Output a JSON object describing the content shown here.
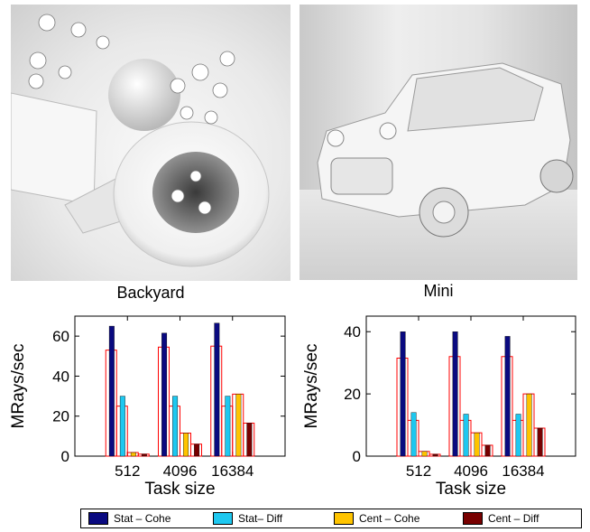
{
  "panels": [
    {
      "caption": "Backyard"
    },
    {
      "caption": "Mini"
    }
  ],
  "colors": {
    "stat_cohe": "#0a0a80",
    "stat_diff": "#1ec8f0",
    "cent_cohe": "#ffc400",
    "cent_diff": "#780000",
    "outline_bar": "#ff0000"
  },
  "legend": [
    {
      "label": "Stat – Cohe",
      "color": "#0a0a80"
    },
    {
      "label": "Stat– Diff",
      "color": "#1ec8f0"
    },
    {
      "label": "Cent – Cohe",
      "color": "#ffc400"
    },
    {
      "label": "Cent – Diff",
      "color": "#780000"
    }
  ],
  "chart_data": [
    {
      "type": "bar",
      "title": "Backyard",
      "xlabel": "Task size",
      "ylabel": "MRays/sec",
      "categories": [
        "512",
        "4096",
        "16384"
      ],
      "ylim": [
        0,
        70
      ],
      "yticks": [
        0,
        20,
        40,
        60
      ],
      "series": [
        {
          "name": "Stat – Cohe",
          "values": [
            65,
            61.5,
            66.5
          ]
        },
        {
          "name": "Stat– Diff",
          "values": [
            30,
            30,
            30
          ]
        },
        {
          "name": "Cent – Cohe",
          "values": [
            1.8,
            11.5,
            31
          ]
        },
        {
          "name": "Cent – Diff",
          "values": [
            1,
            6,
            16.5
          ]
        }
      ],
      "outline_values": [
        [
          53,
          54.5,
          55
        ],
        [
          25,
          25,
          25
        ],
        [
          1.8,
          11.5,
          31
        ],
        [
          1,
          6,
          16.5
        ]
      ]
    },
    {
      "type": "bar",
      "title": "Mini",
      "xlabel": "Task size",
      "ylabel": "MRays/sec",
      "categories": [
        "512",
        "4096",
        "16384"
      ],
      "ylim": [
        0,
        45
      ],
      "yticks": [
        0,
        20,
        40
      ],
      "series": [
        {
          "name": "Stat – Cohe",
          "values": [
            40,
            40,
            38.5
          ]
        },
        {
          "name": "Stat– Diff",
          "values": [
            14,
            13.5,
            13.5
          ]
        },
        {
          "name": "Cent – Cohe",
          "values": [
            1.5,
            7.5,
            20
          ]
        },
        {
          "name": "Cent – Diff",
          "values": [
            0.6,
            3.5,
            9
          ]
        }
      ],
      "outline_values": [
        [
          31.5,
          32,
          32
        ],
        [
          11.5,
          11.5,
          11.5
        ],
        [
          1.5,
          7.5,
          20
        ],
        [
          0.6,
          3.5,
          9
        ]
      ]
    }
  ]
}
